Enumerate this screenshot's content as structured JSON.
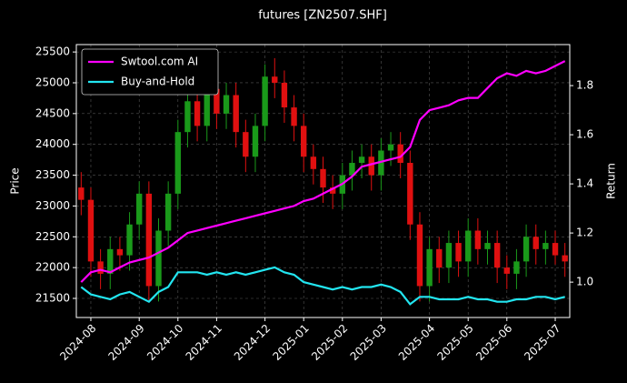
{
  "chart_data": {
    "type": "candlestick",
    "title": "futures [ZN2507.SHF]",
    "ylabel": "Price",
    "y2label": "Return",
    "categories": [
      null,
      "2024-08",
      null,
      null,
      null,
      null,
      "2024-09",
      null,
      null,
      null,
      "2024-10",
      null,
      null,
      null,
      "2024-11",
      null,
      null,
      null,
      null,
      "2024-12",
      null,
      null,
      null,
      "2025-01",
      null,
      null,
      null,
      "2025-02",
      null,
      null,
      null,
      "2025-03",
      null,
      null,
      null,
      null,
      "2025-04",
      null,
      null,
      null,
      "2025-05",
      null,
      null,
      null,
      "2025-06",
      null,
      null,
      null,
      null,
      "2025-07",
      null
    ],
    "open": [
      23300,
      23100,
      22100,
      21900,
      22300,
      22200,
      22700,
      23200,
      21700,
      22600,
      23200,
      24200,
      24700,
      24300,
      24900,
      24500,
      24800,
      24200,
      23800,
      24300,
      25100,
      25000,
      24600,
      24300,
      23800,
      23600,
      23300,
      23200,
      23500,
      23700,
      23800,
      23500,
      23900,
      24000,
      23700,
      22700,
      21700,
      22300,
      22000,
      22400,
      22100,
      22600,
      22300,
      22400,
      22000,
      21900,
      22100,
      22500,
      22300,
      22400,
      22200
    ],
    "high": [
      23550,
      23300,
      22300,
      22500,
      22500,
      22900,
      23400,
      23400,
      22800,
      23400,
      24400,
      24900,
      24900,
      25100,
      25100,
      25000,
      25000,
      24400,
      24500,
      25300,
      25400,
      25200,
      24800,
      24500,
      24000,
      23800,
      23500,
      23700,
      23900,
      24000,
      24000,
      24100,
      24200,
      24200,
      23900,
      22900,
      22500,
      22500,
      22600,
      22600,
      22800,
      22800,
      22600,
      22600,
      22200,
      22300,
      22700,
      22700,
      22600,
      22600,
      22400
    ],
    "low": [
      22850,
      21850,
      21650,
      21650,
      21950,
      21950,
      22450,
      21450,
      21450,
      22350,
      22950,
      23950,
      24050,
      24050,
      24250,
      24250,
      23950,
      23550,
      23550,
      24050,
      24750,
      24350,
      24050,
      23550,
      23350,
      23050,
      22950,
      22950,
      23250,
      23450,
      23250,
      23250,
      23650,
      23450,
      22450,
      21450,
      21450,
      21750,
      21750,
      21850,
      21850,
      22050,
      22050,
      21750,
      21650,
      21650,
      21850,
      22050,
      22050,
      22050,
      21850
    ],
    "close": [
      23100,
      22100,
      21900,
      22300,
      22200,
      22700,
      23200,
      21700,
      22600,
      23200,
      24200,
      24700,
      24300,
      24900,
      24500,
      24800,
      24200,
      23800,
      24300,
      25100,
      25000,
      24600,
      24300,
      23800,
      23600,
      23300,
      23200,
      23500,
      23700,
      23800,
      23500,
      23900,
      24000,
      23700,
      22700,
      21700,
      22300,
      22000,
      22400,
      22100,
      22600,
      22300,
      22400,
      22000,
      21900,
      22100,
      22500,
      22300,
      22400,
      22200,
      22100
    ],
    "up_color": "#1a9a1a",
    "down_color": "#e01010",
    "series": [
      {
        "name": "Swtool.com AI",
        "color": "#ff00ff",
        "axis": "y2",
        "values": [
          1.0,
          1.04,
          1.05,
          1.04,
          1.06,
          1.08,
          1.09,
          1.1,
          1.12,
          1.14,
          1.17,
          1.2,
          1.21,
          1.22,
          1.23,
          1.24,
          1.25,
          1.26,
          1.27,
          1.28,
          1.29,
          1.3,
          1.31,
          1.33,
          1.34,
          1.36,
          1.38,
          1.4,
          1.43,
          1.47,
          1.48,
          1.49,
          1.5,
          1.51,
          1.55,
          1.66,
          1.7,
          1.71,
          1.72,
          1.74,
          1.75,
          1.75,
          1.79,
          1.83,
          1.85,
          1.84,
          1.86,
          1.85,
          1.86,
          1.88,
          1.9
        ]
      },
      {
        "name": "Buy-and-Hold",
        "color": "#22e5f0",
        "axis": "y2",
        "values": [
          0.98,
          0.95,
          0.94,
          0.93,
          0.95,
          0.96,
          0.94,
          0.92,
          0.96,
          0.98,
          1.04,
          1.04,
          1.04,
          1.03,
          1.04,
          1.03,
          1.04,
          1.03,
          1.04,
          1.05,
          1.06,
          1.04,
          1.03,
          1.0,
          0.99,
          0.98,
          0.97,
          0.98,
          0.97,
          0.98,
          0.98,
          0.99,
          0.98,
          0.96,
          0.91,
          0.94,
          0.94,
          0.93,
          0.93,
          0.93,
          0.94,
          0.93,
          0.93,
          0.92,
          0.92,
          0.93,
          0.93,
          0.94,
          0.94,
          0.93,
          0.94
        ]
      }
    ],
    "ylim": [
      21190,
      25620
    ],
    "yticks": [
      21500,
      22000,
      22500,
      23000,
      23500,
      24000,
      24500,
      25000,
      25500
    ],
    "y2lim": [
      0.856,
      1.967
    ],
    "y2ticks": [
      {
        "value": 1,
        "label": "1.0"
      },
      {
        "value": 1.2,
        "label": "1.2"
      },
      {
        "value": 1.4,
        "label": "1.4"
      },
      {
        "value": 1.6,
        "label": "1.6"
      },
      {
        "value": 1.8,
        "label": "1.8"
      }
    ],
    "grid": true,
    "legend": "upper-left"
  }
}
